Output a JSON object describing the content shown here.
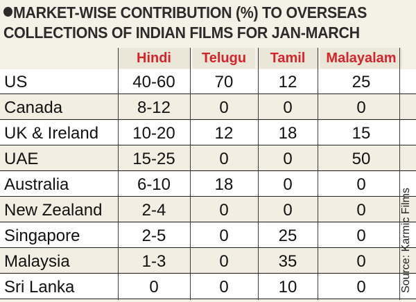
{
  "chart_data": {
    "type": "table",
    "title": "MARKET-WISE CONTRIBUTION (%) TO OVERSEAS COLLECTIONS OF INDIAN FILMS FOR JAN-MARCH",
    "title_lines": [
      "MARKET-WISE CONTRIBUTION (%) TO OVERSEAS",
      "COLLECTIONS OF INDIAN FILMS FOR JAN-MARCH"
    ],
    "columns": [
      "Hindi",
      "Telugu",
      "Tamil",
      "Malayalam"
    ],
    "rows": [
      {
        "market": "US",
        "values": [
          "40-60",
          "70",
          "12",
          "25"
        ]
      },
      {
        "market": "Canada",
        "values": [
          "8-12",
          "0",
          "0",
          "0"
        ]
      },
      {
        "market": "UK & Ireland",
        "values": [
          "10-20",
          "12",
          "18",
          "15"
        ]
      },
      {
        "market": "UAE",
        "values": [
          "15-25",
          "0",
          "0",
          "50"
        ]
      },
      {
        "market": "Australia",
        "values": [
          "6-10",
          "18",
          "0",
          "0"
        ]
      },
      {
        "market": "New Zealand",
        "values": [
          "2-4",
          "0",
          "0",
          "0"
        ]
      },
      {
        "market": "Singapore",
        "values": [
          "2-5",
          "0",
          "25",
          "0"
        ]
      },
      {
        "market": "Malaysia",
        "values": [
          "1-3",
          "0",
          "35",
          "0"
        ]
      },
      {
        "market": "Sri Lanka",
        "values": [
          "0",
          "0",
          "10",
          "0"
        ]
      }
    ],
    "source": "Source: Karmic Films",
    "colors": {
      "header_text": "#d7232a",
      "title_text": "#2b2b2b",
      "background": "#f4f1e6"
    }
  }
}
